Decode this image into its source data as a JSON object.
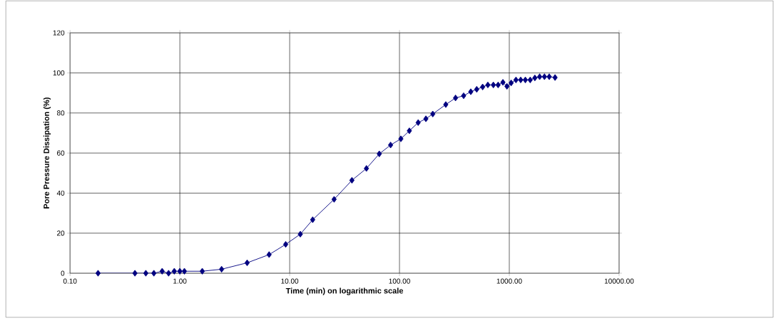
{
  "chart_data": {
    "type": "line",
    "xlabel": "Time (min) on logarithmic scale",
    "ylabel": "Pore Pressure Dissipation (%)",
    "log": "x",
    "grid": true,
    "marker": "diamond",
    "line_style": "solid",
    "xlim": [
      0.1,
      10000
    ],
    "xticks": [
      {
        "value": 0.1,
        "label": "0.10"
      },
      {
        "value": 1,
        "label": "1.00"
      },
      {
        "value": 10,
        "label": "10.00"
      },
      {
        "value": 100,
        "label": "100.00"
      },
      {
        "value": 1000,
        "label": "1000.00"
      },
      {
        "value": 10000,
        "label": "10000.00"
      }
    ],
    "ylim": [
      0,
      120
    ],
    "yticks": [
      0,
      20,
      40,
      60,
      80,
      100,
      120
    ],
    "series": [
      {
        "color": "#000080",
        "x": [
          0.18,
          0.39,
          0.49,
          0.58,
          0.69,
          0.79,
          0.89,
          1.0,
          1.1,
          1.6,
          2.4,
          4.1,
          6.5,
          9.2,
          12.5,
          16.2,
          25.4,
          36.9,
          50,
          65.5,
          83,
          103,
          123,
          148,
          174,
          201,
          264,
          324,
          384,
          446,
          505,
          572,
          638,
          716,
          791,
          875,
          952,
          1040,
          1150,
          1270,
          1400,
          1550,
          1710,
          1890,
          2090,
          2310,
          2610
        ],
        "values": [
          0,
          0,
          0,
          0,
          1,
          0,
          1,
          1,
          1,
          1,
          2,
          5.2,
          9.3,
          14.4,
          19.5,
          26.7,
          36.9,
          46.4,
          52.3,
          59.6,
          64.0,
          67.1,
          71.1,
          75.2,
          77.1,
          79.5,
          84.2,
          87.5,
          88.6,
          90.6,
          91.8,
          93,
          94,
          94,
          94,
          95.3,
          93.3,
          95,
          96.5,
          96.5,
          96.5,
          96.5,
          97.5,
          98.1,
          98.1,
          98.1,
          97.7
        ]
      }
    ]
  }
}
